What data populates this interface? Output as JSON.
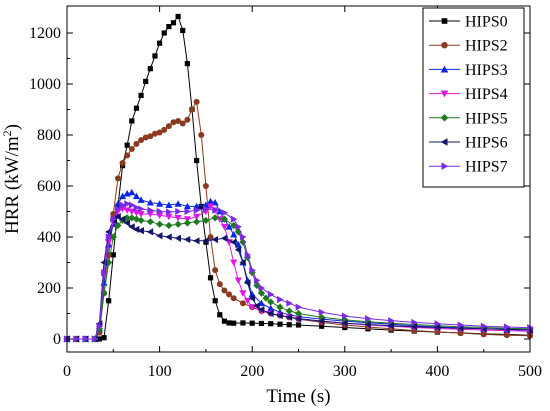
{
  "chart_data": {
    "type": "line",
    "title": "",
    "xlabel": "Time (s)",
    "ylabel_main": "HRR (kW/m",
    "ylabel_sup": "2",
    "ylabel_close": ")",
    "xlim": [
      0,
      500
    ],
    "ylim": [
      -50,
      1300
    ],
    "xticks": [
      0,
      100,
      200,
      300,
      400,
      500
    ],
    "yticks": [
      0,
      200,
      400,
      600,
      800,
      1000,
      1200
    ],
    "grid": false,
    "legend_position": "top-right",
    "series": [
      {
        "name": "HIPS0",
        "color": "#000000",
        "marker": "square",
        "x": [
          0,
          10,
          20,
          30,
          35,
          40,
          45,
          50,
          55,
          60,
          65,
          70,
          75,
          80,
          85,
          90,
          95,
          100,
          105,
          110,
          115,
          120,
          125,
          130,
          135,
          140,
          145,
          150,
          155,
          160,
          165,
          170,
          175,
          180,
          190,
          200,
          210,
          220,
          230,
          240,
          250,
          275,
          300,
          325,
          350,
          375,
          400,
          425,
          450,
          475,
          500
        ],
        "y": [
          0,
          0,
          0,
          0,
          0,
          5,
          150,
          330,
          520,
          680,
          760,
          855,
          905,
          955,
          1010,
          1060,
          1110,
          1160,
          1200,
          1225,
          1240,
          1265,
          1210,
          1080,
          900,
          700,
          520,
          380,
          240,
          150,
          95,
          70,
          63,
          62,
          63,
          62,
          61,
          60,
          58,
          56,
          55,
          50,
          45,
          40,
          35,
          31,
          27,
          24,
          20,
          18,
          15
        ]
      },
      {
        "name": "HIPS2",
        "color": "#8b3a1f",
        "marker": "circle",
        "x": [
          0,
          10,
          20,
          30,
          35,
          40,
          45,
          50,
          55,
          60,
          65,
          70,
          75,
          80,
          85,
          90,
          95,
          100,
          105,
          110,
          115,
          120,
          125,
          130,
          135,
          140,
          145,
          150,
          155,
          160,
          165,
          170,
          175,
          180,
          190,
          200,
          210,
          220,
          230,
          240,
          250,
          275,
          300,
          325,
          350,
          375,
          400,
          425,
          450,
          475,
          500
        ],
        "y": [
          0,
          0,
          0,
          0,
          25,
          180,
          330,
          490,
          630,
          690,
          720,
          745,
          765,
          780,
          790,
          795,
          805,
          810,
          820,
          835,
          850,
          855,
          845,
          860,
          900,
          930,
          800,
          600,
          400,
          270,
          215,
          190,
          175,
          160,
          140,
          125,
          110,
          100,
          92,
          85,
          78,
          65,
          55,
          47,
          40,
          33,
          28,
          23,
          18,
          15,
          13
        ]
      },
      {
        "name": "HIPS3",
        "color": "#0b28e0",
        "marker": "triangle-up",
        "x": [
          0,
          10,
          20,
          30,
          35,
          40,
          45,
          50,
          55,
          60,
          65,
          70,
          75,
          80,
          90,
          100,
          110,
          120,
          130,
          140,
          150,
          155,
          160,
          165,
          170,
          175,
          180,
          185,
          190,
          195,
          200,
          210,
          220,
          230,
          240,
          250,
          275,
          300,
          325,
          350,
          375,
          400,
          425,
          450,
          475,
          500
        ],
        "y": [
          0,
          0,
          0,
          0,
          40,
          220,
          370,
          450,
          530,
          560,
          570,
          575,
          560,
          545,
          535,
          530,
          525,
          530,
          520,
          520,
          525,
          540,
          535,
          500,
          470,
          440,
          410,
          370,
          300,
          230,
          175,
          140,
          120,
          105,
          95,
          88,
          78,
          70,
          64,
          58,
          52,
          47,
          44,
          40,
          37,
          35
        ]
      },
      {
        "name": "HIPS4",
        "color": "#e016e8",
        "marker": "triangle-down",
        "x": [
          0,
          10,
          20,
          30,
          35,
          40,
          45,
          50,
          55,
          60,
          65,
          70,
          75,
          80,
          90,
          100,
          110,
          120,
          130,
          140,
          150,
          155,
          160,
          165,
          170,
          175,
          180,
          185,
          190,
          195,
          200,
          210,
          220,
          230,
          240,
          250,
          275,
          300,
          325,
          350,
          375,
          400,
          425,
          450,
          475,
          500
        ],
        "y": [
          0,
          0,
          0,
          0,
          50,
          250,
          380,
          460,
          500,
          510,
          505,
          500,
          495,
          490,
          490,
          485,
          480,
          475,
          470,
          480,
          500,
          520,
          505,
          470,
          440,
          380,
          300,
          230,
          180,
          150,
          125,
          110,
          100,
          92,
          86,
          80,
          70,
          62,
          55,
          50,
          45,
          41,
          38,
          35,
          33,
          30
        ]
      },
      {
        "name": "HIPS5",
        "color": "#1f7a1f",
        "marker": "diamond",
        "x": [
          0,
          10,
          20,
          30,
          35,
          40,
          45,
          50,
          55,
          60,
          65,
          70,
          75,
          80,
          90,
          100,
          110,
          120,
          130,
          140,
          150,
          160,
          170,
          180,
          185,
          190,
          195,
          200,
          205,
          210,
          215,
          220,
          230,
          240,
          250,
          275,
          300,
          325,
          350,
          375,
          400,
          425,
          450,
          475,
          500
        ],
        "y": [
          0,
          0,
          0,
          0,
          40,
          180,
          300,
          400,
          445,
          465,
          475,
          475,
          470,
          465,
          460,
          450,
          445,
          450,
          455,
          460,
          465,
          475,
          470,
          445,
          420,
          380,
          320,
          260,
          210,
          180,
          160,
          145,
          125,
          110,
          100,
          85,
          75,
          68,
          62,
          57,
          52,
          48,
          45,
          42,
          40
        ]
      },
      {
        "name": "HIPS6",
        "color": "#14146b",
        "marker": "triangle-left",
        "x": [
          0,
          10,
          20,
          30,
          35,
          40,
          45,
          50,
          55,
          60,
          65,
          70,
          75,
          80,
          90,
          100,
          110,
          120,
          130,
          140,
          150,
          160,
          170,
          180,
          185,
          190,
          195,
          200,
          205,
          210,
          220,
          230,
          240,
          250,
          275,
          300,
          325,
          350,
          375,
          400,
          425,
          450,
          475,
          500
        ],
        "y": [
          0,
          0,
          0,
          0,
          60,
          300,
          420,
          465,
          480,
          470,
          455,
          440,
          430,
          425,
          420,
          405,
          400,
          395,
          390,
          385,
          385,
          390,
          395,
          380,
          350,
          300,
          220,
          160,
          130,
          115,
          100,
          92,
          85,
          80,
          70,
          62,
          57,
          52,
          48,
          45,
          42,
          40,
          38,
          36
        ]
      },
      {
        "name": "HIPS7",
        "color": "#7b2be6",
        "marker": "triangle-right",
        "x": [
          0,
          10,
          20,
          30,
          35,
          40,
          45,
          50,
          55,
          60,
          65,
          70,
          75,
          80,
          90,
          100,
          110,
          120,
          130,
          140,
          150,
          160,
          170,
          180,
          185,
          190,
          195,
          200,
          205,
          210,
          220,
          230,
          240,
          250,
          275,
          300,
          325,
          350,
          375,
          400,
          425,
          450,
          475,
          500
        ],
        "y": [
          0,
          0,
          0,
          0,
          50,
          260,
          400,
          470,
          510,
          525,
          530,
          525,
          515,
          510,
          505,
          500,
          498,
          500,
          500,
          505,
          510,
          505,
          495,
          470,
          440,
          400,
          330,
          270,
          230,
          200,
          175,
          155,
          140,
          125,
          105,
          90,
          80,
          72,
          65,
          60,
          55,
          50,
          47,
          44
        ]
      }
    ]
  }
}
